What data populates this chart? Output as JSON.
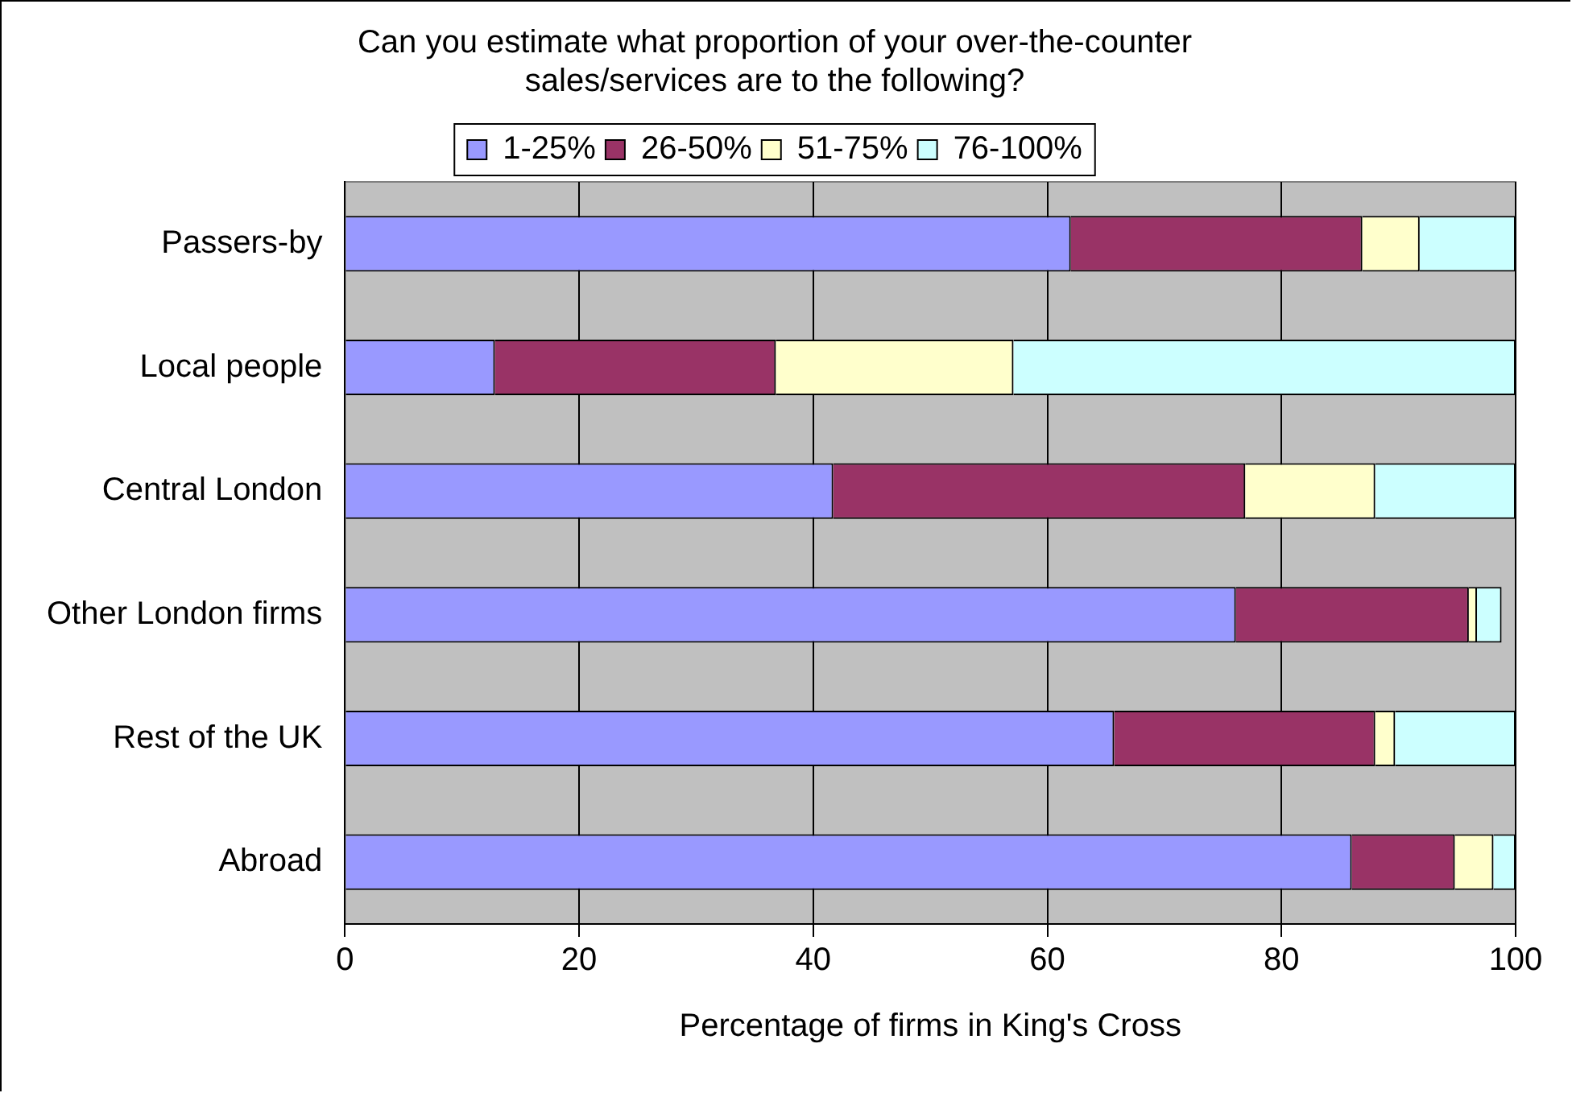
{
  "chart_data": {
    "type": "bar",
    "orientation": "horizontal",
    "stacked": true,
    "title": [
      "Can you estimate what proportion of your over-the-counter",
      "sales/services are to the following?"
    ],
    "xlabel": "Percentage of firms in King's Cross",
    "categories": [
      "Passers-by",
      "Local people",
      "Central London",
      "Other London firms",
      "Rest of the UK",
      "Abroad"
    ],
    "series": [
      {
        "name": "1-25%",
        "color": "#9999ff",
        "values": [
          62.0,
          12.8,
          41.7,
          76.1,
          65.7,
          86.0
        ]
      },
      {
        "name": "26-50%",
        "color": "#993366",
        "values": [
          24.9,
          24.0,
          35.2,
          19.9,
          22.3,
          8.8
        ]
      },
      {
        "name": "51-75%",
        "color": "#ffffcc",
        "values": [
          4.9,
          20.3,
          11.1,
          0.7,
          1.7,
          3.3
        ]
      },
      {
        "name": "76-100%",
        "color": "#ccffff",
        "values": [
          8.2,
          42.9,
          12.0,
          2.1,
          10.3,
          1.9
        ]
      }
    ],
    "xlim": [
      0,
      100
    ],
    "xticks": [
      0,
      20,
      40,
      60,
      80,
      100
    ],
    "grid": "x",
    "legend": "top"
  }
}
